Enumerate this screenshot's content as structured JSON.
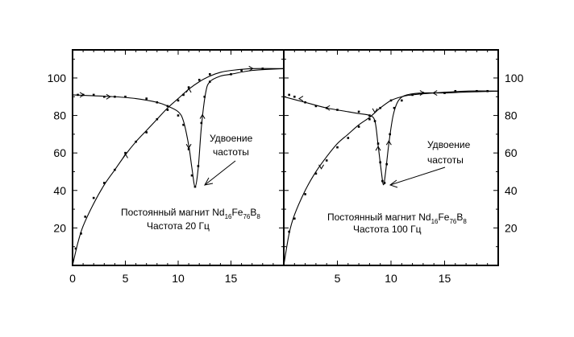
{
  "chart_data": [
    {
      "type": "line",
      "panel": "left",
      "xlim": [
        0,
        20
      ],
      "ylim": [
        0,
        115
      ],
      "x_ticks": [
        0,
        5,
        10,
        15
      ],
      "y_ticks": [
        20,
        40,
        60,
        80,
        100
      ],
      "y_axis_side": "left",
      "grid": false,
      "annotations": {
        "label_1": "Удвоение",
        "label_2": "частоты",
        "magnet_prefix": "Постоянный магнит Nd",
        "sub1": "16",
        "el2": "Fe",
        "sub2": "76",
        "el3": "B",
        "sub3": "8",
        "frequency": "Частота 20 Гц",
        "arrow_tip": [
          11.7,
          42
        ]
      },
      "series": [
        {
          "values": [
            [
              0,
              0
            ],
            [
              0.5,
              12
            ],
            [
              1,
              21
            ],
            [
              2,
              33
            ],
            [
              3,
              43
            ],
            [
              4,
              51
            ],
            [
              5,
              59
            ],
            [
              6,
              66
            ],
            [
              7,
              72
            ],
            [
              8,
              78
            ],
            [
              9,
              84
            ],
            [
              10,
              89
            ],
            [
              11,
              94
            ],
            [
              12,
              98
            ],
            [
              13,
              101
            ],
            [
              14,
              103
            ],
            [
              15,
              104
            ],
            [
              17,
              105
            ],
            [
              20,
              105
            ]
          ],
          "markers": [
            [
              0.3,
              9
            ],
            [
              0.8,
              17
            ],
            [
              1.2,
              26
            ],
            [
              2,
              36
            ],
            [
              3,
              44
            ],
            [
              4,
              51
            ],
            [
              5,
              60
            ],
            [
              6,
              66
            ],
            [
              7,
              71
            ],
            [
              8,
              78
            ],
            [
              9,
              83
            ],
            [
              10,
              88
            ],
            [
              10.5,
              91
            ],
            [
              11,
              95
            ],
            [
              12,
              99
            ],
            [
              13,
              102
            ],
            [
              16,
              104
            ],
            [
              18,
              105
            ]
          ],
          "arrows": [
            [
              5,
              59,
              "up"
            ],
            [
              11,
              94,
              "up"
            ],
            [
              17,
              105,
              "right"
            ]
          ]
        },
        {
          "values": [
            [
              0,
              91
            ],
            [
              2,
              90.5
            ],
            [
              4,
              90
            ],
            [
              6,
              89
            ],
            [
              8,
              87
            ],
            [
              9,
              85
            ],
            [
              10,
              82
            ],
            [
              10.5,
              77
            ],
            [
              11,
              64
            ],
            [
              11.3,
              52
            ],
            [
              11.6,
              42
            ],
            [
              11.9,
              52
            ],
            [
              12.2,
              74
            ],
            [
              12.6,
              92
            ],
            [
              13,
              98
            ],
            [
              14,
              101
            ],
            [
              15,
              102
            ],
            [
              17,
              104
            ],
            [
              20,
              105
            ]
          ],
          "markers": [
            [
              0.5,
              91
            ],
            [
              1,
              91
            ],
            [
              2,
              91
            ],
            [
              3,
              90
            ],
            [
              4,
              90
            ],
            [
              5,
              90
            ],
            [
              7,
              89
            ],
            [
              8,
              87
            ],
            [
              9,
              85
            ],
            [
              10,
              80
            ],
            [
              10.5,
              75
            ],
            [
              11,
              62
            ],
            [
              11.3,
              48
            ],
            [
              11.6,
              42
            ],
            [
              11.9,
              53
            ],
            [
              12.2,
              76
            ],
            [
              12.5,
              90
            ],
            [
              13,
              98
            ],
            [
              15,
              102
            ]
          ],
          "arrows": [
            [
              1,
              91,
              "right"
            ],
            [
              3.5,
              90,
              "right"
            ],
            [
              11,
              63,
              "down"
            ],
            [
              12.3,
              80,
              "up"
            ]
          ]
        }
      ]
    },
    {
      "type": "line",
      "panel": "right",
      "xlim": [
        0,
        20
      ],
      "ylim": [
        0,
        115
      ],
      "x_ticks": [
        5,
        10,
        15
      ],
      "y_ticks": [
        20,
        40,
        60,
        80,
        100
      ],
      "y_axis_side": "right",
      "grid": false,
      "annotations": {
        "label_1": "Удвоение",
        "label_2": "частоты",
        "magnet_prefix": "Постоянный магнит Nd",
        "sub1": "16",
        "el2": "Fe",
        "sub2": "76",
        "el3": "B",
        "sub3": "8",
        "frequency": "Частота 100 Гц",
        "arrow_tip": [
          9.3,
          43
        ]
      },
      "series": [
        {
          "values": [
            [
              0,
              0
            ],
            [
              0.5,
              17
            ],
            [
              1,
              27
            ],
            [
              2,
              40
            ],
            [
              3,
              50
            ],
            [
              4,
              58
            ],
            [
              5,
              65
            ],
            [
              6,
              70
            ],
            [
              7,
              75
            ],
            [
              8,
              79
            ],
            [
              9,
              84
            ],
            [
              10,
              88
            ],
            [
              11,
              90
            ],
            [
              12,
              91
            ],
            [
              14,
              92
            ],
            [
              17,
              93
            ],
            [
              20,
              93
            ]
          ],
          "markers": [
            [
              0.5,
              18
            ],
            [
              1,
              25
            ],
            [
              2,
              38
            ],
            [
              3,
              49
            ],
            [
              4,
              56
            ],
            [
              5,
              63
            ],
            [
              6,
              68
            ],
            [
              7,
              74
            ],
            [
              8,
              78
            ],
            [
              9,
              84
            ],
            [
              10,
              88
            ],
            [
              12,
              91
            ],
            [
              15,
              92
            ],
            [
              18,
              93
            ]
          ],
          "arrows": [
            [
              3.5,
              52,
              "down"
            ],
            [
              8.5,
              82,
              "down"
            ],
            [
              14,
              92,
              "left"
            ]
          ]
        },
        {
          "values": [
            [
              0,
              90
            ],
            [
              2,
              87
            ],
            [
              4,
              84
            ],
            [
              6,
              82
            ],
            [
              7,
              81
            ],
            [
              8,
              80
            ],
            [
              8.5,
              77
            ],
            [
              8.8,
              64
            ],
            [
              9.1,
              50
            ],
            [
              9.3,
              43
            ],
            [
              9.5,
              50
            ],
            [
              9.8,
              65
            ],
            [
              10.2,
              80
            ],
            [
              10.7,
              88
            ],
            [
              11.5,
              91
            ],
            [
              13,
              92
            ],
            [
              15,
              92
            ],
            [
              17,
              92.5
            ],
            [
              20,
              93
            ]
          ],
          "markers": [
            [
              0.5,
              91
            ],
            [
              1,
              90
            ],
            [
              2,
              87
            ],
            [
              3,
              85
            ],
            [
              4,
              84
            ],
            [
              5,
              83
            ],
            [
              7,
              82
            ],
            [
              8,
              80
            ],
            [
              8.5,
              77
            ],
            [
              8.8,
              65
            ],
            [
              9,
              55
            ],
            [
              9.2,
              45
            ],
            [
              9.4,
              44
            ],
            [
              9.6,
              54
            ],
            [
              9.9,
              70
            ],
            [
              10.3,
              84
            ],
            [
              11,
              88
            ],
            [
              13,
              92
            ],
            [
              16,
              93
            ],
            [
              19,
              93
            ]
          ],
          "arrows": [
            [
              1.5,
              89,
              "left"
            ],
            [
              4,
              84,
              "left"
            ],
            [
              8.8,
              63,
              "up"
            ],
            [
              9.8,
              66,
              "up"
            ],
            [
              13,
              92,
              "right"
            ]
          ]
        }
      ]
    }
  ]
}
